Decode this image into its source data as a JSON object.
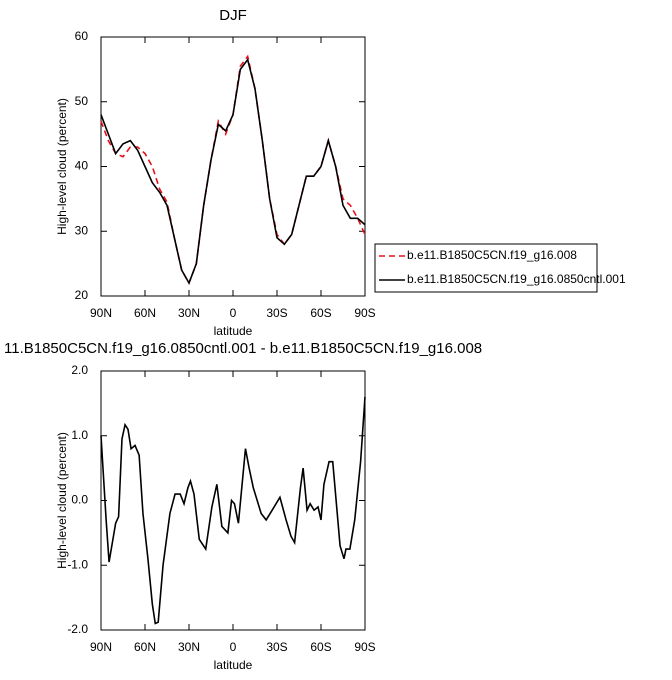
{
  "chart_data": [
    {
      "type": "line",
      "title": "DJF",
      "xlabel": "latitude",
      "ylabel": "High-level cloud (percent)",
      "x": [
        90,
        85,
        80,
        75,
        70,
        65,
        60,
        55,
        50,
        45,
        40,
        35,
        30,
        25,
        20,
        15,
        10,
        5,
        0,
        -5,
        -10,
        -15,
        -20,
        -25,
        -30,
        -35,
        -40,
        -45,
        -50,
        -55,
        -60,
        -65,
        -70,
        -75,
        -80,
        -85,
        -90
      ],
      "series": [
        {
          "name": "b.e11.B1850C5CN.f19_g16.008",
          "color": "#e8101a",
          "style": "dashed",
          "values": [
            47,
            44,
            42,
            41.5,
            43,
            43,
            42,
            40,
            36.5,
            34.5,
            29,
            24,
            22,
            25,
            34,
            41,
            47,
            45,
            48,
            55.5,
            57,
            52,
            44,
            35,
            29.5,
            28,
            29.5,
            34,
            38.5,
            38.5,
            40,
            44,
            40,
            35,
            34,
            32,
            29.5
          ]
        },
        {
          "name": "b.e11.B1850C5CN.f19_g16.0850cntl.001",
          "color": "#000000",
          "style": "solid",
          "values": [
            48,
            45,
            42,
            43.5,
            44,
            42.5,
            40,
            37.5,
            36,
            34,
            29,
            24,
            22,
            25,
            34,
            41,
            46.5,
            45.5,
            48,
            55,
            56.5,
            52,
            44,
            35,
            29,
            28,
            29.5,
            34,
            38.5,
            38.5,
            40,
            44,
            40,
            34,
            32,
            32,
            31
          ]
        }
      ],
      "xlim": [
        90,
        -90
      ],
      "xticks": [
        {
          "value": 90,
          "label": "90N"
        },
        {
          "value": 60,
          "label": "60N"
        },
        {
          "value": 30,
          "label": "30N"
        },
        0,
        {
          "value": -30,
          "label": "30S"
        },
        {
          "value": -60,
          "label": "60S"
        },
        {
          "value": -90,
          "label": "90S"
        }
      ],
      "ylim": [
        20,
        60
      ],
      "yticks": [
        20,
        30,
        40,
        50,
        60
      ],
      "legend": "right"
    },
    {
      "type": "line",
      "title": "11.B1850C5CN.f19_g16.0850cntl.001 - b.e11.B1850C5CN.f19_g16.008",
      "xlabel": "latitude",
      "ylabel": "High-level cloud (percent)",
      "x": [
        90,
        86.5,
        84.5,
        80,
        78,
        75.7,
        73.6,
        71.6,
        69.5,
        66.8,
        64,
        61.4,
        58,
        55,
        53,
        51,
        47.7,
        43,
        39.5,
        36,
        33.4,
        30.7,
        29,
        26.6,
        23,
        18.6,
        14.4,
        11,
        7.6,
        3.5,
        1,
        -1,
        -3.7,
        -8.5,
        -11,
        -13.8,
        -19.2,
        -22.6,
        -26.7,
        -32,
        -36.2,
        -39.5,
        -42,
        -46,
        -47.8,
        -50.5,
        -52.6,
        -55.3,
        -58,
        -60,
        -62,
        -65.5,
        -68,
        -73,
        -75.7,
        -77,
        -79.7,
        -83,
        -87,
        -90
      ],
      "series": [
        {
          "color": "#000000",
          "style": "solid",
          "values": [
            1.0,
            -0.3,
            -0.95,
            -0.35,
            -0.25,
            0.95,
            1.17,
            1.1,
            0.8,
            0.85,
            0.7,
            -0.2,
            -0.9,
            -1.6,
            -1.9,
            -1.88,
            -1.0,
            -0.2,
            0.1,
            0.1,
            -0.05,
            0.2,
            0.3,
            0.1,
            -0.6,
            -0.75,
            -0.1,
            0.25,
            -0.4,
            -0.5,
            0.0,
            -0.05,
            -0.35,
            0.8,
            0.5,
            0.2,
            -0.2,
            -0.3,
            -0.15,
            0.05,
            -0.3,
            -0.55,
            -0.65,
            0.2,
            0.5,
            -0.15,
            -0.05,
            -0.15,
            -0.1,
            -0.3,
            0.25,
            0.6,
            0.6,
            -0.7,
            -0.9,
            -0.75,
            -0.75,
            -0.3,
            0.6,
            1.6
          ]
        }
      ],
      "xlim": [
        90,
        -90
      ],
      "xticks": [
        {
          "value": 90,
          "label": "90N"
        },
        {
          "value": 60,
          "label": "60N"
        },
        {
          "value": 30,
          "label": "30N"
        },
        0,
        {
          "value": -30,
          "label": "30S"
        },
        {
          "value": -60,
          "label": "60S"
        },
        {
          "value": -90,
          "label": "90S"
        }
      ],
      "ylim": [
        -2,
        2
      ],
      "yticks": [
        {
          "value": -2,
          "label": "-2.0"
        },
        {
          "value": -1,
          "label": "-1.0"
        },
        {
          "value": 0,
          "label": "0.0"
        },
        {
          "value": 1,
          "label": "1.0"
        },
        {
          "value": 2,
          "label": "2.0"
        }
      ]
    }
  ]
}
